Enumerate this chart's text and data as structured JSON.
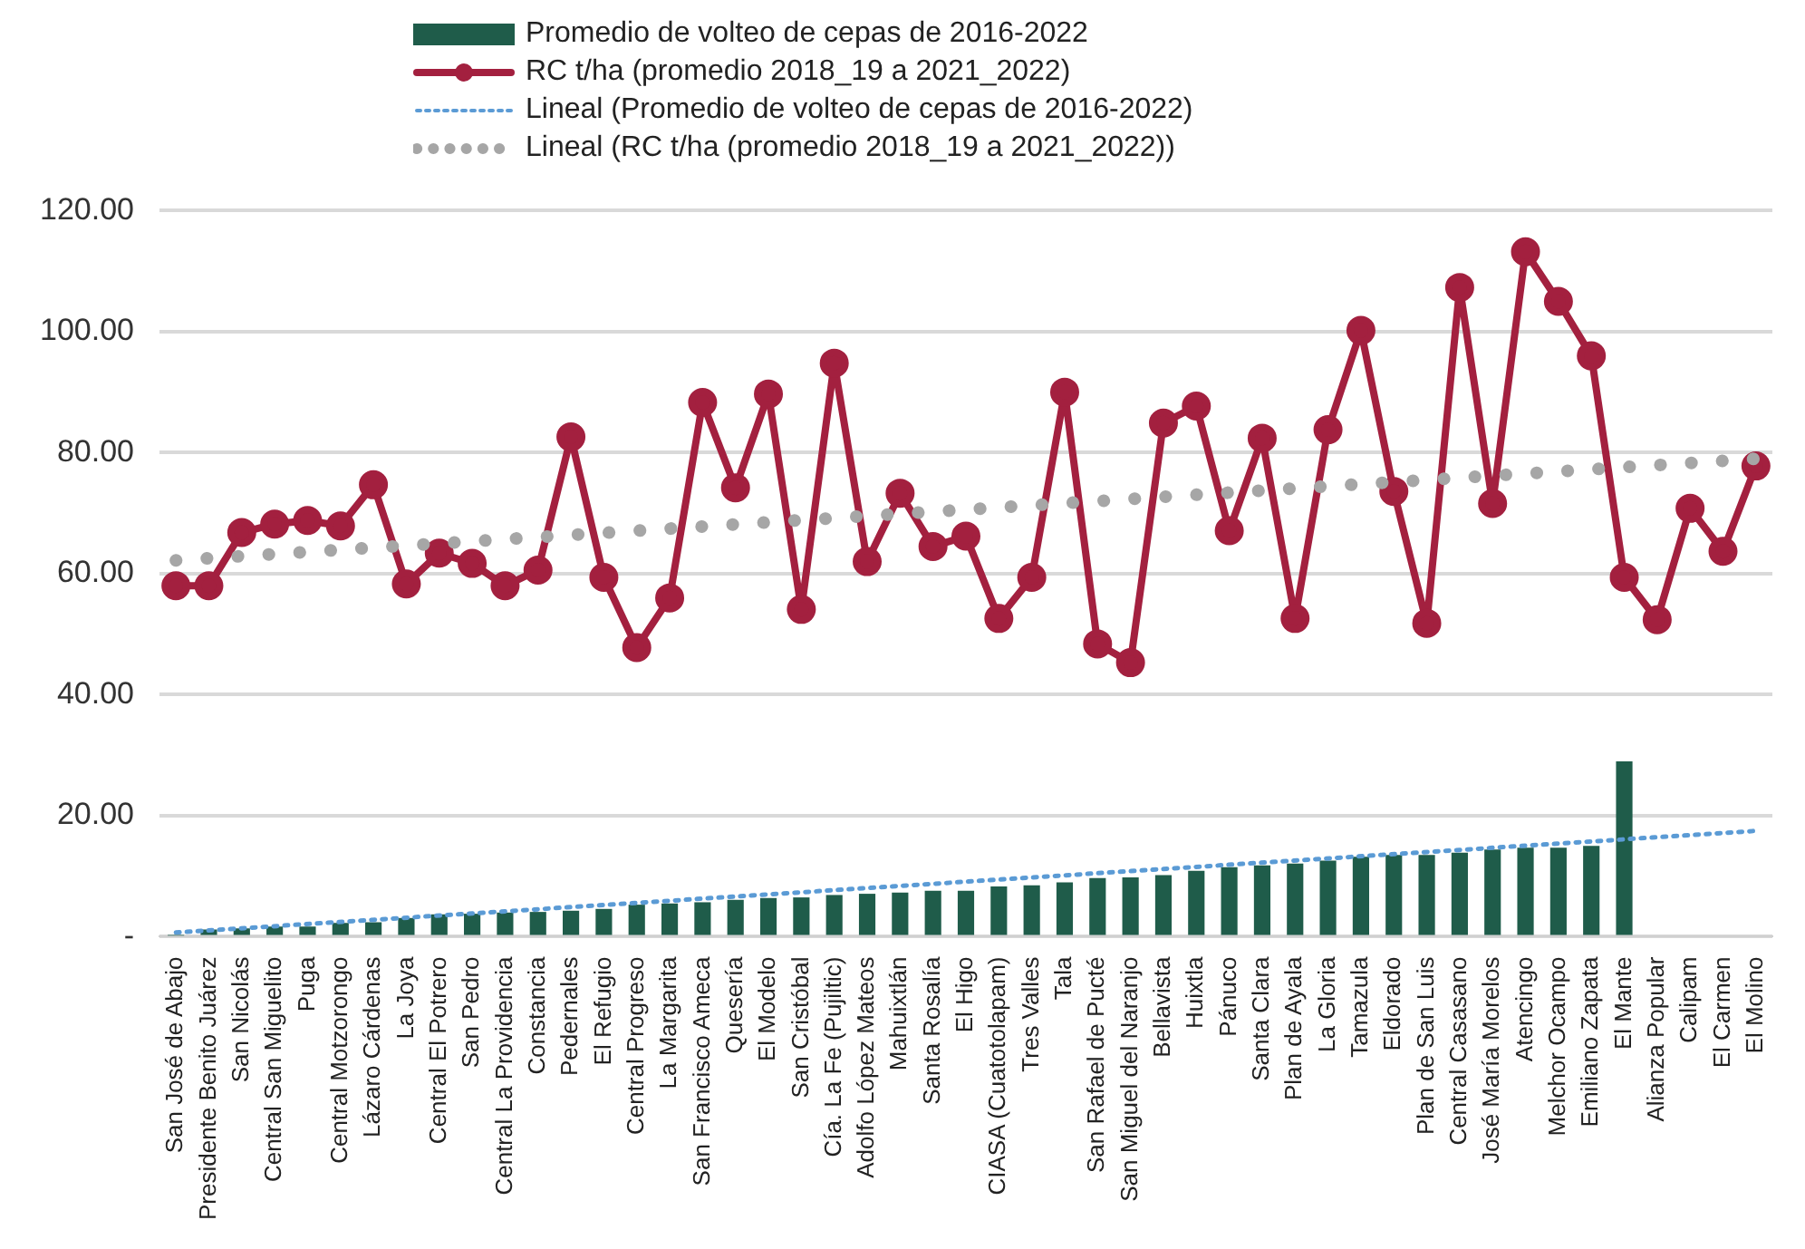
{
  "chart_data": {
    "type": "bar",
    "legend": "top",
    "grid": "y",
    "categories": [
      "San José de Abajo",
      "Presidente Benito Juárez",
      "San Nicolás",
      "Central San Miguelito",
      "Puga",
      "Central Motzorongo",
      "Lázaro Cárdenas",
      "La Joya",
      "Central El Potrero",
      "San Pedro",
      "Central La Providencia",
      "Constancia",
      "Pedernales",
      "El Refugio",
      "Central Progreso",
      "La Margarita",
      "San Francisco Ameca",
      "Quesería",
      "El Modelo",
      "San Cristóbal",
      "Cía. La Fe (Pujiltic)",
      "Adolfo López Mateos",
      "Mahuixtlán",
      "Santa Rosalía",
      "El Higo",
      "CIASA (Cuatotolapam)",
      "Tres Valles",
      "Tala",
      "San Rafael de Pucté",
      "San Miguel del Naranjo",
      "Bellavista",
      "Huixtla",
      "Pánuco",
      "Santa Clara",
      "Plan de Ayala",
      "La Gloria",
      "Tamazula",
      "Eldorado",
      "Plan de San Luis",
      "Central Casasano",
      "José María Morelos",
      "Atencingo",
      "Melchor Ocampo",
      "Emiliano Zapata",
      "El Mante",
      "Alianza Popular",
      "Calipam",
      "El Carmen",
      "El Molino"
    ],
    "ylim": [
      0,
      120
    ],
    "yticks": [
      {
        "value": 0,
        "label": "-"
      },
      {
        "value": 20,
        "label": "20.00"
      },
      {
        "value": 40,
        "label": "40.00"
      },
      {
        "value": 60,
        "label": "60.00"
      },
      {
        "value": 80,
        "label": "80.00"
      },
      {
        "value": 100,
        "label": "100.00"
      },
      {
        "value": 120,
        "label": "120.00"
      }
    ],
    "series": [
      {
        "name": "Promedio de volteo de cepas de 2016-2022",
        "color": "#1f5c4a",
        "values": [
          0.2,
          1.2,
          1.4,
          1.7,
          1.7,
          2.3,
          2.4,
          3.1,
          3.7,
          3.8,
          4,
          4.1,
          4.3,
          4.6,
          5.3,
          5.5,
          5.7,
          6.1,
          6.4,
          6.5,
          6.9,
          7.1,
          7.3,
          7.6,
          7.6,
          8.3,
          8.5,
          9,
          9.7,
          9.8,
          10.2,
          10.9,
          11.5,
          11.8,
          12.1,
          12.6,
          13.2,
          13.5,
          13.5,
          13.9,
          14.4,
          14.7,
          14.7,
          15,
          29,
          null,
          null,
          null,
          null
        ]
      },
      {
        "name": "RC t/ha (promedio 2018_19 a 2021_2022)",
        "type": "line",
        "color": "#a3203f",
        "marker": "circle",
        "line_style": "solid",
        "values": [
          58,
          58,
          66.8,
          68.2,
          68.8,
          67.9,
          74.7,
          58.3,
          63.4,
          61.7,
          58,
          60.6,
          82.6,
          59.4,
          47.8,
          56,
          88.3,
          74.2,
          89.7,
          54.1,
          94.8,
          62,
          73.3,
          64.5,
          66.2,
          52.6,
          59.4,
          90,
          48.4,
          45.3,
          84.9,
          87.7,
          67.1,
          82.4,
          52.6,
          83.8,
          100.2,
          73.6,
          51.8,
          107.3,
          71.6,
          113.2,
          105,
          96,
          59.4,
          52.4,
          70.8,
          63.7,
          77.8
        ]
      },
      {
        "name": "Lineal (Promedio de volteo de cepas de 2016-2022)",
        "type": "line",
        "color": "#5b9bd5",
        "marker": "none",
        "line_style": "dotted",
        "x": [
          "San José de Abajo",
          "El Molino"
        ],
        "values": [
          0.7,
          17.5
        ]
      },
      {
        "name": "Lineal (RC t/ha (promedio 2018_19 a 2021_2022))",
        "type": "line",
        "color": "#a6a6a6",
        "marker": "none",
        "line_style": "dotted",
        "x": [
          "San José de Abajo",
          "El Molino"
        ],
        "values": [
          62.2,
          79
        ]
      }
    ]
  }
}
